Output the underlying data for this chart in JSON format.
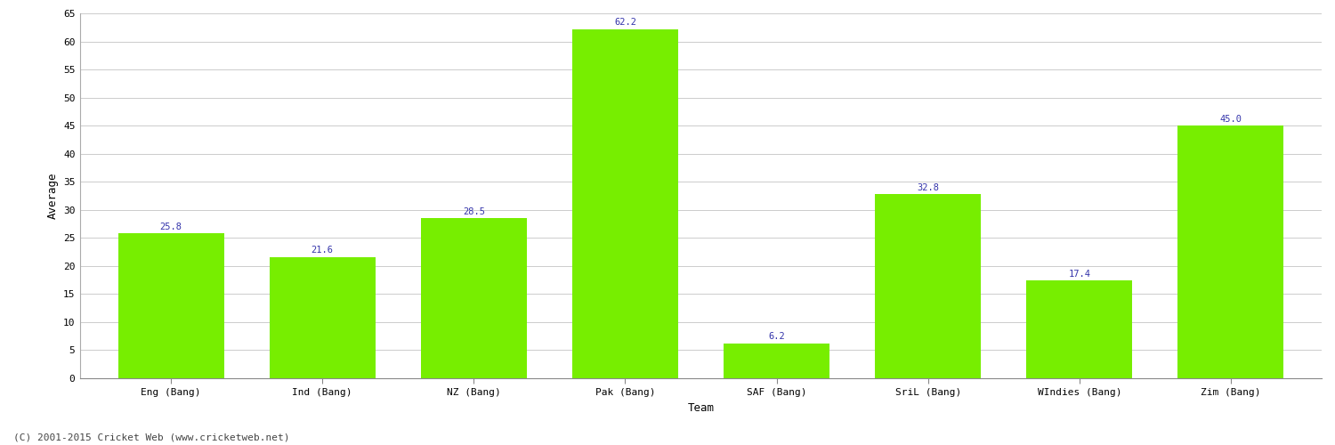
{
  "categories": [
    "Eng (Bang)",
    "Ind (Bang)",
    "NZ (Bang)",
    "Pak (Bang)",
    "SAF (Bang)",
    "SriL (Bang)",
    "WIndies (Bang)",
    "Zim (Bang)"
  ],
  "values": [
    25.8,
    21.6,
    28.5,
    62.2,
    6.2,
    32.8,
    17.4,
    45.0
  ],
  "bar_color": "#77ee00",
  "bar_edge_color": "#77ee00",
  "value_color": "#3333aa",
  "ylabel": "Average",
  "xlabel": "Team",
  "ylim": [
    0,
    65
  ],
  "yticks": [
    0,
    5,
    10,
    15,
    20,
    25,
    30,
    35,
    40,
    45,
    50,
    55,
    60,
    65
  ],
  "background_color": "#ffffff",
  "grid_color": "#cccccc",
  "footer_text": "(C) 2001-2015 Cricket Web (www.cricketweb.net)",
  "value_fontsize": 7.5,
  "axis_label_fontsize": 9,
  "tick_fontsize": 8,
  "footer_fontsize": 8,
  "bar_width": 0.7
}
